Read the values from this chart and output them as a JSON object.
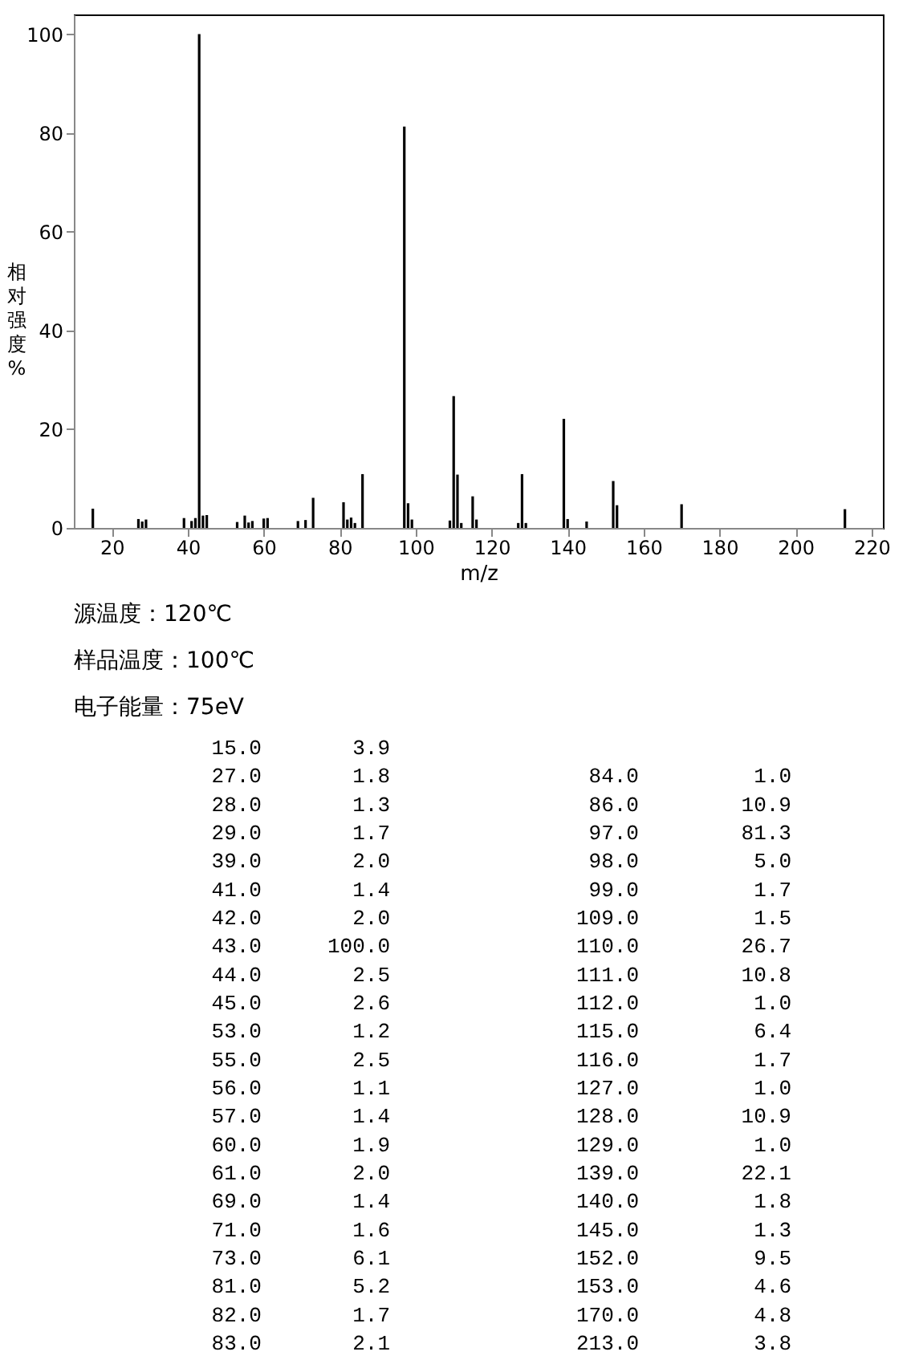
{
  "chart_data": [
    {
      "type": "bar",
      "xlabel": "m/z",
      "ylabel": "相对强度%",
      "x": [
        15.0,
        27.0,
        28.0,
        29.0,
        39.0,
        41.0,
        42.0,
        43.0,
        44.0,
        45.0,
        53.0,
        55.0,
        56.0,
        57.0,
        60.0,
        61.0,
        69.0,
        71.0,
        73.0,
        81.0,
        82.0,
        83.0,
        84.0,
        86.0,
        97.0,
        98.0,
        99.0,
        109.0,
        110.0,
        111.0,
        112.0,
        115.0,
        116.0,
        127.0,
        128.0,
        129.0,
        139.0,
        140.0,
        145.0,
        152.0,
        153.0,
        170.0,
        213.0
      ],
      "values": [
        3.9,
        1.8,
        1.3,
        1.7,
        2.0,
        1.4,
        2.0,
        100.0,
        2.5,
        2.6,
        1.2,
        2.5,
        1.1,
        1.4,
        1.9,
        2.0,
        1.4,
        1.6,
        6.1,
        5.2,
        1.7,
        2.1,
        1.0,
        10.9,
        81.3,
        5.0,
        1.7,
        1.5,
        26.7,
        10.8,
        1.0,
        6.4,
        1.7,
        1.0,
        10.9,
        1.0,
        22.1,
        1.8,
        1.3,
        9.5,
        4.6,
        4.8,
        3.8
      ],
      "color": "#000000",
      "xlim": [
        10,
        223
      ],
      "xticks": [
        20,
        40,
        60,
        80,
        100,
        120,
        140,
        160,
        180,
        200,
        220
      ],
      "ylim": [
        0,
        104
      ],
      "yticks": [
        0,
        20,
        40,
        60,
        80,
        100
      ],
      "grid": false,
      "annotations": [
        "源温度：120℃",
        "样品温度：100℃",
        "电子能量：75eV"
      ]
    },
    {
      "type": "other",
      "annotations": [
        "15.0",
        "3.9",
        "27.0",
        "1.8",
        "28.0",
        "1.3",
        "29.0",
        "1.7",
        "39.0",
        "2.0",
        "41.0",
        "1.4",
        "42.0",
        "2.0",
        "43.0",
        "100.0",
        "44.0",
        "2.5",
        "45.0",
        "2.6",
        "53.0",
        "1.2",
        "55.0",
        "2.5",
        "56.0",
        "1.1",
        "57.0",
        "1.4",
        "60.0",
        "1.9",
        "61.0",
        "2.0",
        "69.0",
        "1.4",
        "71.0",
        "1.6",
        "73.0",
        "6.1",
        "81.0",
        "5.2",
        "82.0",
        "1.7",
        "83.0",
        "2.1",
        "84.0",
        "1.0",
        "86.0",
        "10.9",
        "97.0",
        "81.3",
        "98.0",
        "5.0",
        "99.0",
        "1.7",
        "109.0",
        "1.5",
        "110.0",
        "26.7",
        "111.0",
        "10.8",
        "112.0",
        "1.0",
        "115.0",
        "6.4",
        "116.0",
        "1.7",
        "127.0",
        "1.0",
        "128.0",
        "10.9",
        "129.0",
        "1.0",
        "139.0",
        "22.1",
        "140.0",
        "1.8",
        "145.0",
        "1.3",
        "152.0",
        "9.5",
        "153.0",
        "4.6",
        "170.0",
        "4.8",
        "213.0",
        "3.8"
      ]
    }
  ]
}
